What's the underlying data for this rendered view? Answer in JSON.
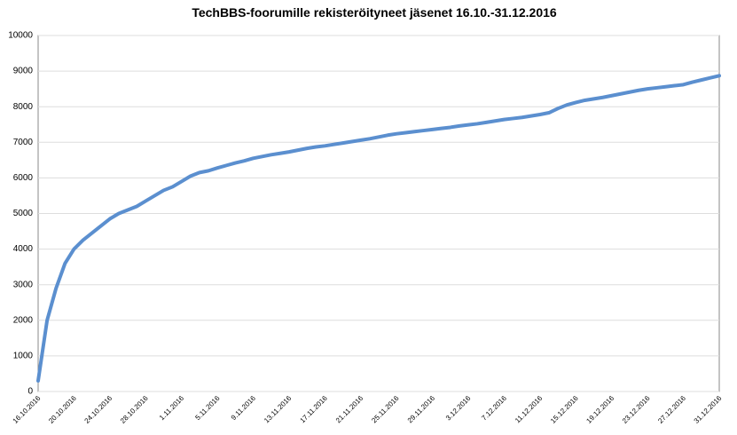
{
  "chart_data": {
    "type": "line",
    "title": "TechBBS-foorumille  rekisteröityneet  jäsenet  16.10.-31.12.2016",
    "categories": [
      "16.10.2016",
      null,
      null,
      null,
      "20.10.2016",
      null,
      null,
      null,
      "24.10.2016",
      null,
      null,
      null,
      "28.10.2016",
      null,
      null,
      null,
      "1.11.2016",
      null,
      null,
      null,
      "5.11.2016",
      null,
      null,
      null,
      "9.11.2016",
      null,
      null,
      null,
      "13.11.2016",
      null,
      null,
      null,
      "17.11.2016",
      null,
      null,
      null,
      "21.11.2016",
      null,
      null,
      null,
      "25.11.2016",
      null,
      null,
      null,
      "29.11.2016",
      null,
      null,
      null,
      "3.12.2016",
      null,
      null,
      null,
      "7.12.2016",
      null,
      null,
      null,
      "11.12.2016",
      null,
      null,
      null,
      "15.12.2016",
      null,
      null,
      null,
      "19.12.2016",
      null,
      null,
      null,
      "23.12.2016",
      null,
      null,
      null,
      "27.12.2016",
      null,
      null,
      null,
      "31.12.2016"
    ],
    "series": [
      {
        "name": "Jäsenet",
        "color": "#5b8fcf",
        "values": [
          300,
          2000,
          2900,
          3600,
          4000,
          4250,
          4450,
          4650,
          4850,
          5000,
          5100,
          5200,
          5350,
          5500,
          5650,
          5750,
          5900,
          6050,
          6150,
          6200,
          6280,
          6350,
          6420,
          6480,
          6550,
          6600,
          6650,
          6690,
          6730,
          6780,
          6830,
          6870,
          6900,
          6940,
          6980,
          7020,
          7060,
          7100,
          7150,
          7200,
          7240,
          7270,
          7300,
          7330,
          7360,
          7390,
          7420,
          7460,
          7490,
          7520,
          7560,
          7600,
          7640,
          7670,
          7700,
          7740,
          7780,
          7830,
          7950,
          8050,
          8120,
          8180,
          8220,
          8260,
          8310,
          8360,
          8410,
          8460,
          8500,
          8530,
          8560,
          8590,
          8620,
          8690,
          8750,
          8810,
          8870
        ]
      }
    ],
    "ylim": [
      0,
      10000
    ],
    "yticks": [
      0,
      1000,
      2000,
      3000,
      4000,
      5000,
      6000,
      7000,
      8000,
      9000,
      10000
    ],
    "grid": true
  }
}
